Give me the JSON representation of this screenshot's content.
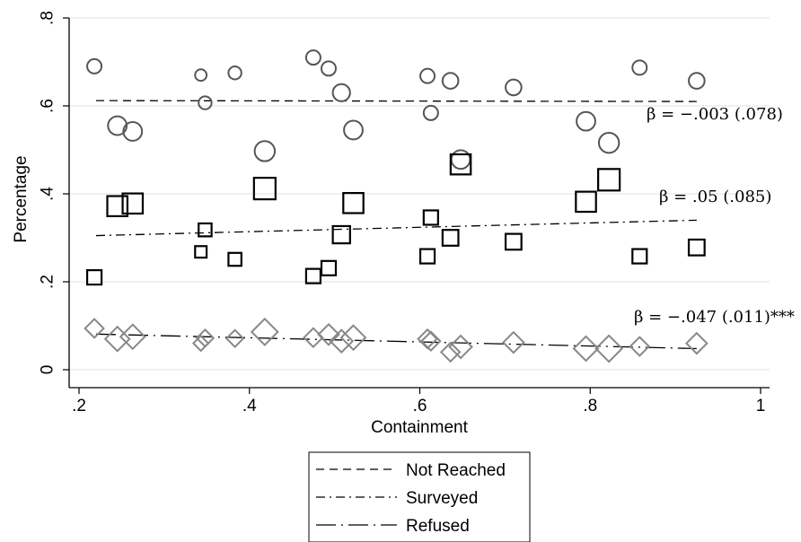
{
  "chart_data": {
    "type": "scatter",
    "xlabel": "Containment",
    "ylabel": "Percentage",
    "xlim": [
      0.2,
      1.0
    ],
    "ylim": [
      0.0,
      0.8
    ],
    "x_ticks": [
      {
        "value": 0.2,
        "label": ".2"
      },
      {
        "value": 0.4,
        "label": ".4"
      },
      {
        "value": 0.6,
        "label": ".6"
      },
      {
        "value": 0.8,
        "label": ".8"
      },
      {
        "value": 1.0,
        "label": "1"
      }
    ],
    "y_ticks": [
      {
        "value": 0.0,
        "label": "0"
      },
      {
        "value": 0.2,
        "label": ".2"
      },
      {
        "value": 0.4,
        "label": ".4"
      },
      {
        "value": 0.6,
        "label": ".6"
      },
      {
        "value": 0.8,
        "label": ".8"
      }
    ],
    "grid": "horizontal",
    "legend_position": "bottom",
    "series": [
      {
        "name": "Not Reached",
        "marker": "circle",
        "color": "#555555",
        "line_style": "dashed",
        "fit": {
          "x": [
            0.22,
            0.925
          ],
          "y": [
            0.612,
            0.61
          ]
        },
        "annotation": "β = −.003 (.078)",
        "points": [
          {
            "x": 0.218,
            "y": 0.69,
            "s": 1.0
          },
          {
            "x": 0.245,
            "y": 0.555,
            "s": 1.3
          },
          {
            "x": 0.263,
            "y": 0.542,
            "s": 1.3
          },
          {
            "x": 0.343,
            "y": 0.67,
            "s": 0.8
          },
          {
            "x": 0.348,
            "y": 0.607,
            "s": 0.9
          },
          {
            "x": 0.383,
            "y": 0.675,
            "s": 0.9
          },
          {
            "x": 0.418,
            "y": 0.497,
            "s": 1.4
          },
          {
            "x": 0.475,
            "y": 0.71,
            "s": 1.0
          },
          {
            "x": 0.493,
            "y": 0.685,
            "s": 1.0
          },
          {
            "x": 0.508,
            "y": 0.63,
            "s": 1.2
          },
          {
            "x": 0.522,
            "y": 0.545,
            "s": 1.3
          },
          {
            "x": 0.609,
            "y": 0.668,
            "s": 1.0
          },
          {
            "x": 0.613,
            "y": 0.584,
            "s": 1.0
          },
          {
            "x": 0.636,
            "y": 0.657,
            "s": 1.1
          },
          {
            "x": 0.648,
            "y": 0.478,
            "s": 1.3
          },
          {
            "x": 0.71,
            "y": 0.642,
            "s": 1.1
          },
          {
            "x": 0.795,
            "y": 0.565,
            "s": 1.3
          },
          {
            "x": 0.822,
            "y": 0.516,
            "s": 1.4
          },
          {
            "x": 0.858,
            "y": 0.687,
            "s": 1.0
          },
          {
            "x": 0.925,
            "y": 0.657,
            "s": 1.1
          }
        ]
      },
      {
        "name": "Surveyed",
        "marker": "square",
        "color": "#000000",
        "line_style": "dash-dot",
        "fit": {
          "x": [
            0.22,
            0.925
          ],
          "y": [
            0.305,
            0.34
          ]
        },
        "annotation": "β = .05 (.085)",
        "points": [
          {
            "x": 0.218,
            "y": 0.21,
            "s": 1.0
          },
          {
            "x": 0.245,
            "y": 0.372,
            "s": 1.4
          },
          {
            "x": 0.263,
            "y": 0.378,
            "s": 1.4
          },
          {
            "x": 0.343,
            "y": 0.268,
            "s": 0.8
          },
          {
            "x": 0.348,
            "y": 0.318,
            "s": 0.9
          },
          {
            "x": 0.383,
            "y": 0.251,
            "s": 0.9
          },
          {
            "x": 0.418,
            "y": 0.412,
            "s": 1.5
          },
          {
            "x": 0.475,
            "y": 0.213,
            "s": 1.0
          },
          {
            "x": 0.493,
            "y": 0.231,
            "s": 1.0
          },
          {
            "x": 0.508,
            "y": 0.307,
            "s": 1.2
          },
          {
            "x": 0.522,
            "y": 0.379,
            "s": 1.4
          },
          {
            "x": 0.609,
            "y": 0.258,
            "s": 1.0
          },
          {
            "x": 0.613,
            "y": 0.346,
            "s": 1.0
          },
          {
            "x": 0.636,
            "y": 0.3,
            "s": 1.1
          },
          {
            "x": 0.648,
            "y": 0.467,
            "s": 1.4
          },
          {
            "x": 0.71,
            "y": 0.291,
            "s": 1.1
          },
          {
            "x": 0.795,
            "y": 0.382,
            "s": 1.4
          },
          {
            "x": 0.822,
            "y": 0.432,
            "s": 1.5
          },
          {
            "x": 0.858,
            "y": 0.258,
            "s": 1.0
          },
          {
            "x": 0.925,
            "y": 0.278,
            "s": 1.1
          }
        ]
      },
      {
        "name": "Refused",
        "marker": "diamond",
        "color": "#888888",
        "line_style": "long-dash-dot",
        "fit": {
          "x": [
            0.22,
            0.925
          ],
          "y": [
            0.081,
            0.048
          ]
        },
        "annotation": "β = −.047 (.011)***",
        "points": [
          {
            "x": 0.218,
            "y": 0.094,
            "s": 1.0
          },
          {
            "x": 0.245,
            "y": 0.07,
            "s": 1.3
          },
          {
            "x": 0.263,
            "y": 0.075,
            "s": 1.3
          },
          {
            "x": 0.343,
            "y": 0.06,
            "s": 0.8
          },
          {
            "x": 0.348,
            "y": 0.072,
            "s": 0.9
          },
          {
            "x": 0.383,
            "y": 0.071,
            "s": 0.9
          },
          {
            "x": 0.418,
            "y": 0.086,
            "s": 1.4
          },
          {
            "x": 0.475,
            "y": 0.073,
            "s": 1.0
          },
          {
            "x": 0.493,
            "y": 0.08,
            "s": 1.1
          },
          {
            "x": 0.508,
            "y": 0.065,
            "s": 1.2
          },
          {
            "x": 0.522,
            "y": 0.073,
            "s": 1.3
          },
          {
            "x": 0.609,
            "y": 0.07,
            "s": 1.0
          },
          {
            "x": 0.613,
            "y": 0.065,
            "s": 1.0
          },
          {
            "x": 0.636,
            "y": 0.04,
            "s": 1.0
          },
          {
            "x": 0.648,
            "y": 0.052,
            "s": 1.2
          },
          {
            "x": 0.71,
            "y": 0.062,
            "s": 1.1
          },
          {
            "x": 0.795,
            "y": 0.048,
            "s": 1.3
          },
          {
            "x": 0.822,
            "y": 0.048,
            "s": 1.4
          },
          {
            "x": 0.858,
            "y": 0.053,
            "s": 1.0
          },
          {
            "x": 0.925,
            "y": 0.06,
            "s": 1.1
          }
        ]
      }
    ]
  }
}
